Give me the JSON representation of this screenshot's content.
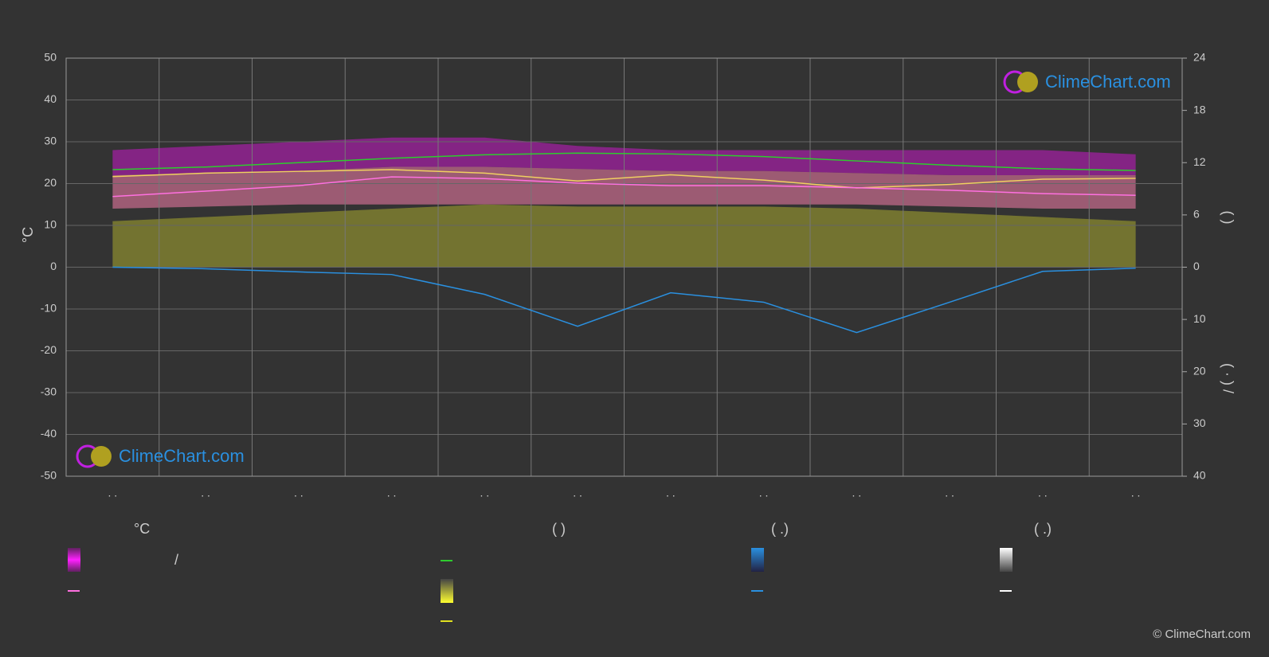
{
  "chart_data": {
    "type": "climate",
    "categories": [
      ". .",
      ". .",
      ". .",
      ". .",
      ". .",
      ". .",
      ". .",
      ". .",
      ". .",
      ". .",
      ". .",
      ". ."
    ],
    "ylabel": "°C",
    "y2label": "(          )",
    "y3label": "( · )        /",
    "ylim": [
      -50,
      50
    ],
    "yticks": [
      -50,
      -40,
      -30,
      -20,
      -10,
      0,
      10,
      20,
      30,
      40,
      50
    ],
    "y2lim": [
      0,
      24
    ],
    "y2ticks": [
      0,
      6,
      12,
      18,
      24
    ],
    "y3lim": [
      0,
      40
    ],
    "y3ticks": [
      10,
      20,
      30,
      40
    ],
    "grid": true,
    "bands": [
      {
        "color": "#a020a0",
        "lower": [
          22,
          22.5,
          23,
          24,
          24,
          23.5,
          23,
          23,
          22.5,
          22,
          22,
          22
        ],
        "upper": [
          28,
          29,
          30,
          31,
          31,
          29,
          28,
          28,
          28,
          28,
          28,
          27
        ]
      },
      {
        "color": "#c06a8a",
        "lower": [
          14,
          14.5,
          15,
          15,
          15,
          15,
          15,
          15,
          15,
          14.5,
          14,
          14
        ],
        "upper": [
          22,
          22.5,
          23,
          24,
          24,
          23.5,
          23,
          23,
          22.5,
          22,
          22,
          22
        ]
      },
      {
        "color": "#8a8a30",
        "lower": [
          0,
          0,
          0,
          0,
          0,
          0,
          0,
          0,
          0,
          0,
          0,
          0
        ],
        "upper": [
          11,
          12,
          13,
          14,
          15,
          14.5,
          14.5,
          14.5,
          14,
          13,
          12,
          11
        ]
      }
    ],
    "series": [
      {
        "color": "#2ecc2e",
        "axis": "y2",
        "values": [
          11.2,
          11.5,
          12.0,
          12.5,
          12.9,
          13.1,
          13.0,
          12.7,
          12.2,
          11.7,
          11.3,
          11.1
        ]
      },
      {
        "color": "#f0d060",
        "axis": "y2",
        "values": [
          10.4,
          10.8,
          11.0,
          11.2,
          10.8,
          9.9,
          10.6,
          10.0,
          9.1,
          9.5,
          10.1,
          10.2
        ]
      },
      {
        "color": "#ff70e0",
        "axis": "y",
        "values": [
          16.9,
          18.2,
          19.5,
          21.6,
          21.2,
          20.1,
          19.5,
          19.5,
          19.0,
          18.4,
          17.6,
          17.2
        ]
      },
      {
        "color": "#2a90e0",
        "axis": "y3",
        "values": [
          0,
          0.3,
          0.9,
          1.4,
          5.2,
          11.3,
          4.9,
          6.7,
          12.5,
          6.7,
          0.8,
          0.2
        ]
      }
    ]
  },
  "logo": "ClimeChart.com",
  "copyright": "© ClimeChart.com",
  "legend": {
    "headers": [
      "°C",
      "(          )",
      "(   .)",
      "(   .)"
    ],
    "item_label": "/"
  }
}
